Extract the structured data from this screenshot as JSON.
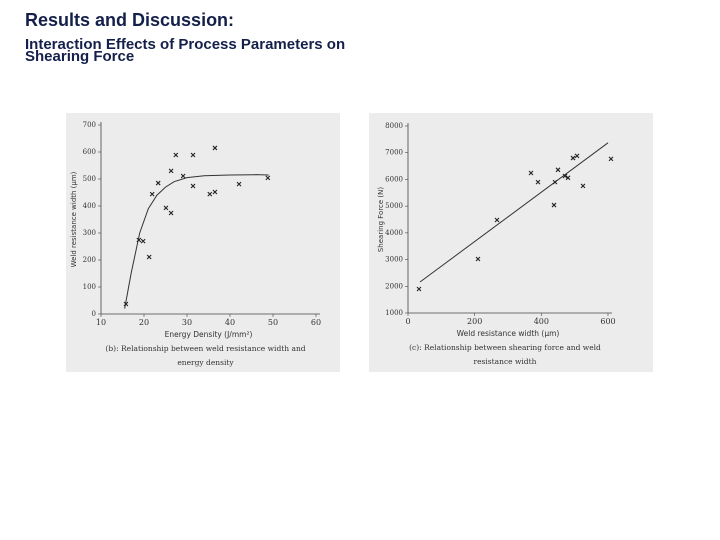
{
  "header": {
    "title": "Results and Discussion:",
    "subtitle": "Interaction Effects of Process Parameters on Shearing Force"
  },
  "chart_data": [
    {
      "type": "scatter",
      "xlabel": "Energy Density (J/mm²)",
      "ylabel": "Weld resistance width (μm)",
      "caption": [
        "(b): Relationship between weld resistance width and",
        "energy density"
      ],
      "x": [
        15.8,
        18.8,
        19.8,
        21.2,
        21.9,
        23.3,
        25.1,
        26.3,
        26.3,
        27.4,
        29.1,
        31.4,
        31.4,
        35.3,
        36.5,
        36.5,
        42.1,
        48.8
      ],
      "values": [
        37,
        274,
        270,
        211,
        444,
        485,
        393,
        374,
        530,
        589,
        511,
        589,
        474,
        444,
        615,
        452,
        481,
        504
      ],
      "fit": {
        "x": [
          15.5,
          17,
          19,
          21,
          23,
          25,
          27,
          30,
          34,
          40,
          46,
          49
        ],
        "values": [
          20,
          150,
          300,
          390,
          440,
          470,
          490,
          505,
          512,
          515,
          516,
          515
        ]
      },
      "xlim": [
        10,
        60
      ],
      "xticks": [
        10,
        20,
        30,
        40,
        50,
        60
      ],
      "ylim": [
        0,
        700
      ],
      "yticks": [
        0,
        100,
        200,
        300,
        400,
        500,
        600,
        700
      ],
      "color": "#222"
    },
    {
      "type": "scatter",
      "xlabel": "Weld resistance width (μm)",
      "ylabel": "Shearing Force (N)",
      "caption": [
        "(c): Relationship between shearing force and weld",
        "resistance width"
      ],
      "x": [
        33,
        210,
        267,
        369,
        390,
        438,
        441,
        450,
        471,
        480,
        495,
        507,
        525,
        609
      ],
      "values": [
        1900,
        3020,
        4480,
        6240,
        5900,
        5040,
        5900,
        6360,
        6130,
        6060,
        6800,
        6880,
        5760,
        6770
      ],
      "fit": {
        "x": [
          36,
          600
        ],
        "values": [
          2160,
          7370
        ]
      },
      "xlim": [
        0,
        600
      ],
      "xticks": [
        0,
        200,
        400,
        600
      ],
      "ylim": [
        1000,
        8000
      ],
      "yticks": [
        1000,
        2000,
        3000,
        4000,
        5000,
        6000,
        7000,
        8000
      ],
      "color": "#222"
    }
  ]
}
